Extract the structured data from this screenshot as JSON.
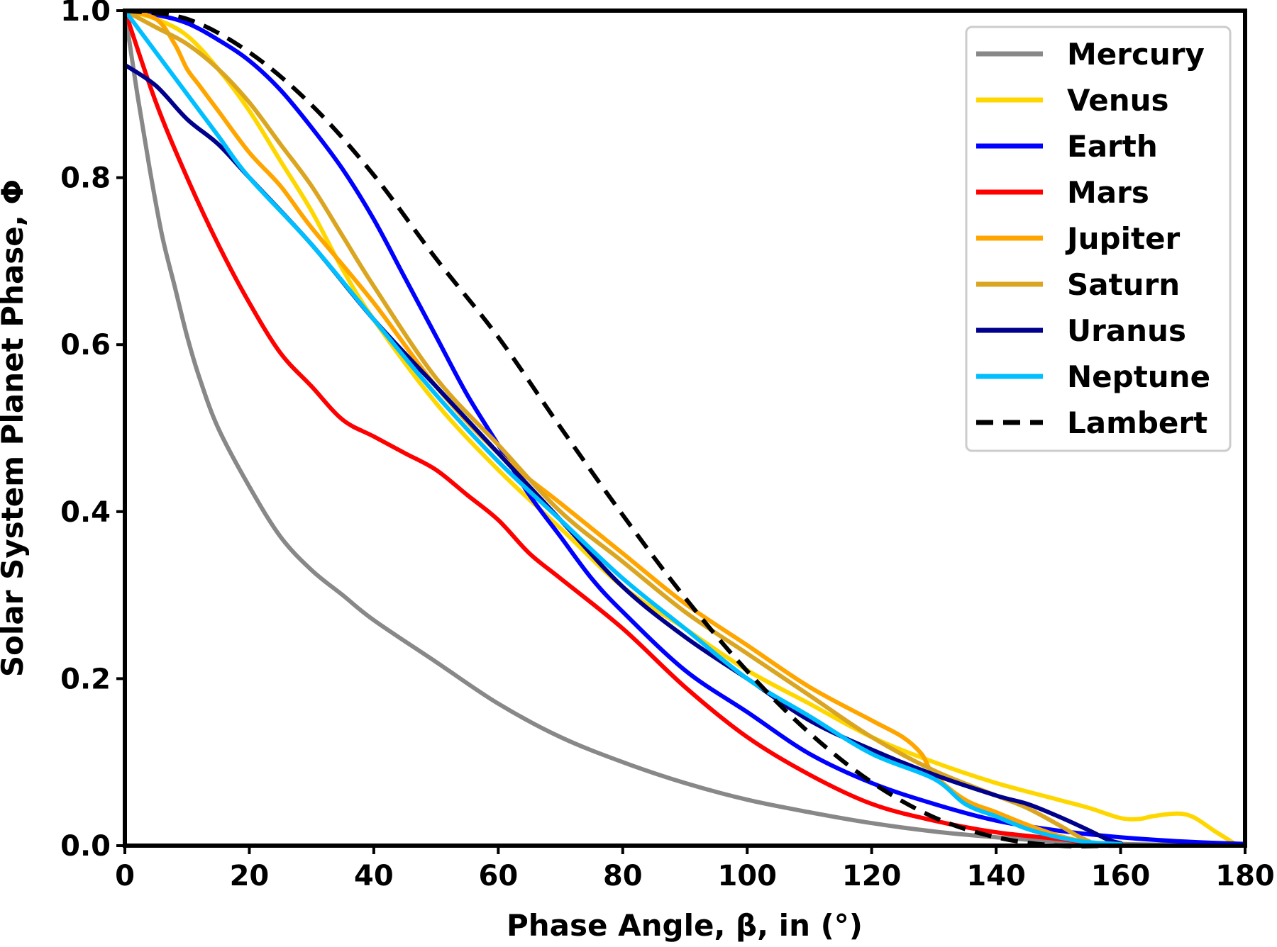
{
  "chart_data": {
    "type": "line",
    "title": "",
    "xlabel": "Phase Angle, β, in (°)",
    "ylabel": "Solar System Planet Phase, Φ",
    "xlim": [
      0,
      180
    ],
    "ylim": [
      0,
      1
    ],
    "xticks": [
      "0",
      "20",
      "40",
      "60",
      "80",
      "100",
      "120",
      "140",
      "160",
      "180"
    ],
    "yticks": [
      "0.0",
      "0.2",
      "0.4",
      "0.6",
      "0.8",
      "1.0"
    ],
    "grid": false,
    "legend_position": "top-right",
    "series": [
      {
        "name": "Mercury",
        "color": "#888888",
        "x": [
          0,
          2,
          4,
          6,
          8,
          10,
          12,
          15,
          20,
          25,
          30,
          35,
          40,
          50,
          60,
          70,
          80,
          90,
          100,
          110,
          120,
          130,
          140,
          150,
          160,
          170,
          180
        ],
        "y": [
          1.0,
          0.9,
          0.81,
          0.73,
          0.67,
          0.61,
          0.56,
          0.5,
          0.43,
          0.37,
          0.33,
          0.3,
          0.27,
          0.22,
          0.17,
          0.13,
          0.1,
          0.075,
          0.055,
          0.04,
          0.027,
          0.017,
          0.01,
          0.005,
          0.002,
          0.001,
          0.0
        ]
      },
      {
        "name": "Venus",
        "color": "#FFD700",
        "x": [
          0,
          5,
          10,
          15,
          20,
          25,
          30,
          35,
          40,
          50,
          60,
          70,
          80,
          90,
          100,
          110,
          120,
          130,
          140,
          150,
          155,
          160,
          163,
          165,
          168,
          170,
          172,
          175,
          178
        ],
        "y": [
          1.0,
          0.99,
          0.97,
          0.93,
          0.88,
          0.82,
          0.76,
          0.69,
          0.63,
          0.53,
          0.45,
          0.38,
          0.31,
          0.26,
          0.21,
          0.17,
          0.13,
          0.1,
          0.075,
          0.055,
          0.045,
          0.033,
          0.032,
          0.035,
          0.038,
          0.038,
          0.033,
          0.018,
          0.004
        ]
      },
      {
        "name": "Earth",
        "color": "#0000FF",
        "x": [
          0,
          5,
          10,
          15,
          20,
          25,
          30,
          35,
          40,
          45,
          50,
          55,
          60,
          65,
          70,
          75,
          80,
          90,
          100,
          110,
          120,
          130,
          140,
          150,
          160,
          170,
          180
        ],
        "y": [
          1.0,
          0.995,
          0.985,
          0.965,
          0.94,
          0.905,
          0.86,
          0.81,
          0.75,
          0.68,
          0.61,
          0.54,
          0.48,
          0.42,
          0.37,
          0.32,
          0.28,
          0.21,
          0.16,
          0.11,
          0.075,
          0.05,
          0.03,
          0.018,
          0.01,
          0.005,
          0.002
        ]
      },
      {
        "name": "Mars",
        "color": "#FF0000",
        "x": [
          0,
          5,
          10,
          15,
          20,
          25,
          30,
          35,
          40,
          45,
          50,
          55,
          60,
          65,
          70,
          80,
          90,
          100,
          110,
          120,
          130,
          140,
          150,
          155
        ],
        "y": [
          1.0,
          0.89,
          0.8,
          0.72,
          0.65,
          0.59,
          0.55,
          0.51,
          0.49,
          0.47,
          0.45,
          0.42,
          0.39,
          0.35,
          0.32,
          0.26,
          0.19,
          0.13,
          0.085,
          0.05,
          0.03,
          0.016,
          0.008,
          0.003
        ]
      },
      {
        "name": "Jupiter",
        "color": "#FFA500",
        "x": [
          0,
          5,
          8,
          10,
          12,
          15,
          20,
          25,
          30,
          40,
          50,
          60,
          70,
          80,
          90,
          100,
          110,
          120,
          125,
          128,
          130,
          135,
          140,
          145,
          150,
          155
        ],
        "y": [
          1.0,
          0.99,
          0.96,
          0.93,
          0.91,
          0.88,
          0.83,
          0.79,
          0.74,
          0.65,
          0.55,
          0.47,
          0.41,
          0.35,
          0.29,
          0.24,
          0.19,
          0.15,
          0.13,
          0.11,
          0.085,
          0.055,
          0.04,
          0.025,
          0.012,
          0.003
        ]
      },
      {
        "name": "Saturn",
        "color": "#DAA520",
        "x": [
          0,
          5,
          10,
          15,
          20,
          25,
          30,
          35,
          40,
          50,
          60,
          70,
          80,
          90,
          100,
          110,
          120,
          130,
          140,
          145,
          150,
          153,
          155
        ],
        "y": [
          1.0,
          0.98,
          0.96,
          0.93,
          0.89,
          0.84,
          0.79,
          0.73,
          0.67,
          0.56,
          0.48,
          0.4,
          0.34,
          0.28,
          0.23,
          0.18,
          0.13,
          0.09,
          0.06,
          0.045,
          0.025,
          0.012,
          0.005
        ]
      },
      {
        "name": "Uranus",
        "color": "#00008B",
        "x": [
          0,
          5,
          10,
          15,
          20,
          30,
          40,
          50,
          60,
          70,
          80,
          90,
          100,
          110,
          120,
          130,
          140,
          145,
          150,
          155,
          158,
          160
        ],
        "y": [
          0.935,
          0.91,
          0.87,
          0.84,
          0.8,
          0.72,
          0.63,
          0.55,
          0.47,
          0.39,
          0.31,
          0.25,
          0.2,
          0.15,
          0.115,
          0.085,
          0.06,
          0.05,
          0.035,
          0.018,
          0.007,
          0.003
        ]
      },
      {
        "name": "Neptune",
        "color": "#00BFFF",
        "x": [
          0,
          5,
          10,
          15,
          20,
          30,
          40,
          50,
          60,
          70,
          80,
          90,
          100,
          110,
          120,
          130,
          135,
          140,
          145,
          150,
          155,
          160
        ],
        "y": [
          1.0,
          0.95,
          0.9,
          0.85,
          0.8,
          0.72,
          0.63,
          0.54,
          0.46,
          0.39,
          0.32,
          0.26,
          0.2,
          0.155,
          0.11,
          0.08,
          0.05,
          0.035,
          0.02,
          0.01,
          0.004,
          0.002
        ]
      },
      {
        "name": "Lambert",
        "color": "#000000",
        "dashed": true,
        "x": [
          0,
          10,
          20,
          30,
          40,
          50,
          60,
          70,
          80,
          90,
          100,
          110,
          120,
          130,
          140,
          150,
          160,
          170,
          180
        ],
        "y": [
          1.0,
          0.99,
          0.95,
          0.887,
          0.803,
          0.703,
          0.609,
          0.501,
          0.396,
          0.297,
          0.209,
          0.135,
          0.076,
          0.034,
          0.01,
          0.0,
          0.0,
          0.0,
          0.0
        ]
      }
    ]
  }
}
